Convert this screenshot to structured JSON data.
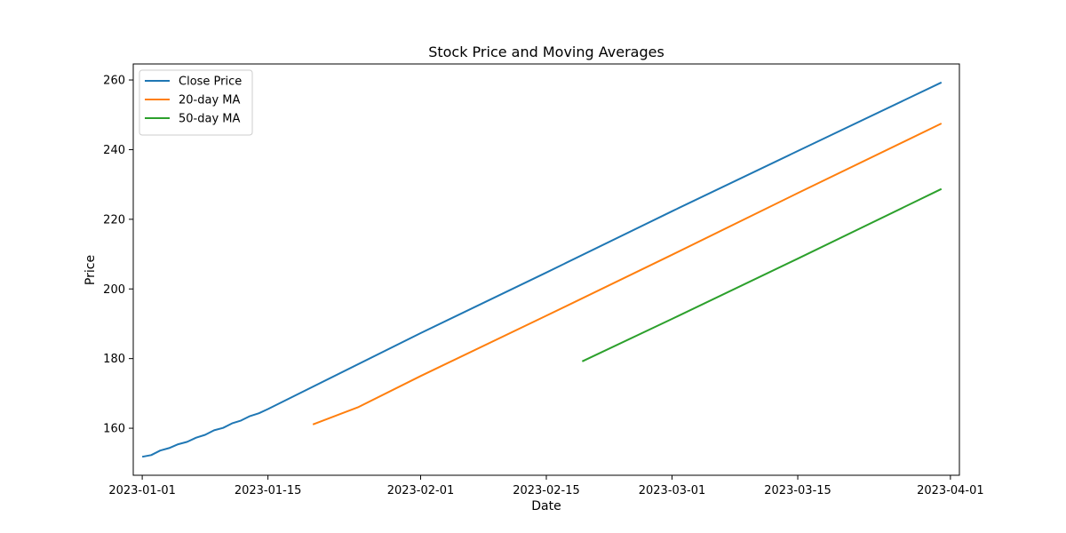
{
  "chart_data": {
    "type": "line",
    "title": "Stock Price and Moving Averages",
    "xlabel": "Date",
    "ylabel": "Price",
    "x_range": [
      "2022-12-31",
      "2023-04-02"
    ],
    "ylim": [
      146.5,
      264.6
    ],
    "x_ticks": [
      "2023-01-01",
      "2023-01-15",
      "2023-02-01",
      "2023-02-15",
      "2023-03-01",
      "2023-03-15",
      "2023-04-01"
    ],
    "y_ticks": [
      160,
      180,
      200,
      220,
      240,
      260
    ],
    "grid": false,
    "legend": {
      "placement": "top-left",
      "entries": [
        "Close Price",
        "20-day MA",
        "50-day MA"
      ]
    },
    "series": [
      {
        "name": "Close Price",
        "color": "#1f77b4",
        "points": [
          [
            "2023-01-01",
            151.8
          ],
          [
            "2023-01-02",
            152.3
          ],
          [
            "2023-01-03",
            153.6
          ],
          [
            "2023-01-04",
            154.3
          ],
          [
            "2023-01-05",
            155.4
          ],
          [
            "2023-01-06",
            156.1
          ],
          [
            "2023-01-07",
            157.3
          ],
          [
            "2023-01-08",
            158.1
          ],
          [
            "2023-01-09",
            159.4
          ],
          [
            "2023-01-10",
            160.1
          ],
          [
            "2023-01-11",
            161.4
          ],
          [
            "2023-01-12",
            162.2
          ],
          [
            "2023-01-13",
            163.5
          ],
          [
            "2023-01-14",
            164.3
          ],
          [
            "2023-01-15",
            165.5
          ],
          [
            "2023-02-01",
            187.3
          ],
          [
            "2023-02-15",
            204.7
          ],
          [
            "2023-03-01",
            222.3
          ],
          [
            "2023-03-15",
            239.6
          ],
          [
            "2023-03-31",
            259.3
          ]
        ]
      },
      {
        "name": "20-day MA",
        "color": "#ff7f0e",
        "points": [
          [
            "2023-01-20",
            161.1
          ],
          [
            "2023-01-25",
            166.0
          ],
          [
            "2023-02-01",
            175.0
          ],
          [
            "2023-02-15",
            192.3
          ],
          [
            "2023-03-01",
            209.8
          ],
          [
            "2023-03-15",
            227.5
          ],
          [
            "2023-03-31",
            247.5
          ]
        ]
      },
      {
        "name": "50-day MA",
        "color": "#2ca02c",
        "points": [
          [
            "2023-02-19",
            179.2
          ],
          [
            "2023-03-01",
            191.4
          ],
          [
            "2023-03-15",
            208.7
          ],
          [
            "2023-03-31",
            228.7
          ]
        ]
      }
    ]
  }
}
